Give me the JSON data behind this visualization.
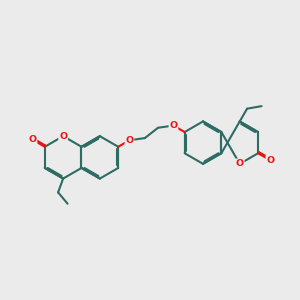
{
  "bg_color": "#ebebeb",
  "bond_color": "#2d6b63",
  "oxygen_color": "#ee1111",
  "lw": 1.5,
  "dbo": 0.055,
  "figsize": [
    3.0,
    3.0
  ],
  "dpi": 100,
  "xlim": [
    0,
    10
  ],
  "ylim": [
    0,
    10
  ]
}
